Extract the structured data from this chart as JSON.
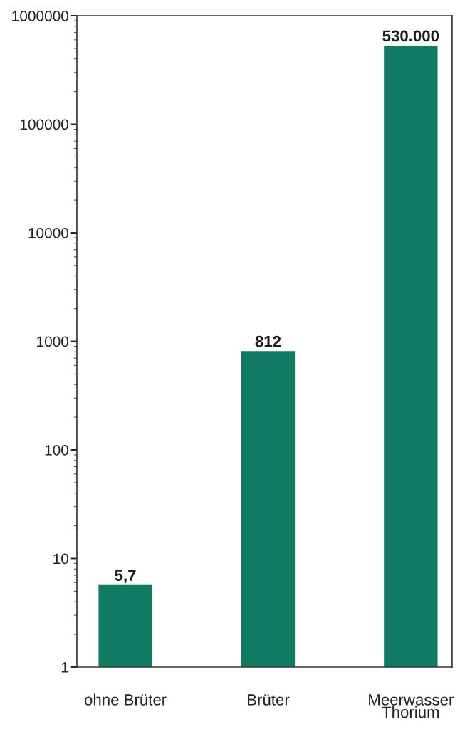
{
  "chart_data": {
    "type": "bar",
    "categories": [
      "ohne Brüter",
      "Brüter",
      "Meerwasser\nThorium"
    ],
    "values": [
      5.7,
      812,
      530000
    ],
    "color": "#117a62",
    "value_labels": [
      "5,7",
      "812",
      "530.000"
    ],
    "log": true,
    "ylim": [
      1,
      1000000
    ],
    "yticks": [
      1,
      10,
      100,
      1000,
      10000,
      100000,
      1000000
    ]
  }
}
